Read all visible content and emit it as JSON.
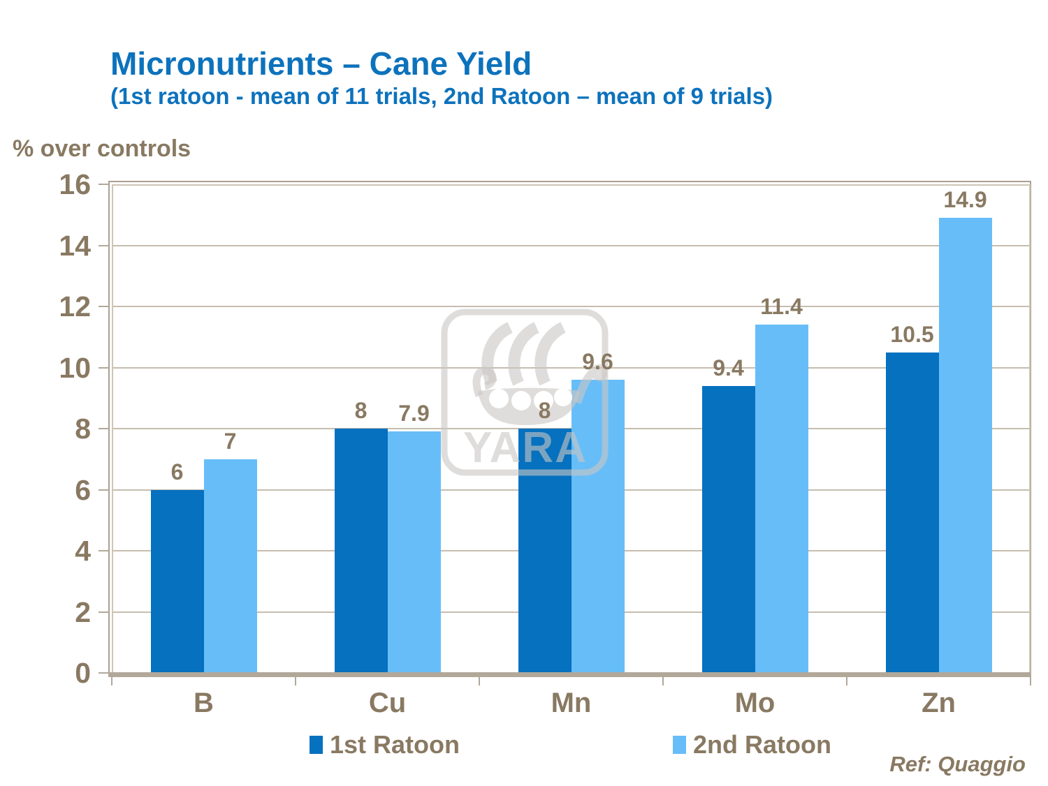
{
  "slide": {
    "title": "Micronutrients – Cane Yield",
    "subtitle": "(1st ratoon - mean of 11 trials, 2nd Ratoon – mean of 9 trials)",
    "reference": "Ref: Quaggio"
  },
  "chart_data": {
    "type": "bar",
    "title": "Micronutrients – Cane Yield",
    "subtitle": "(1st ratoon - mean of 11 trials, 2nd Ratoon – mean of 9 trials)",
    "ylabel": "% over controls",
    "xlabel": "",
    "categories": [
      "B",
      "Cu",
      "Mn",
      "Mo",
      "Zn"
    ],
    "series": [
      {
        "name": "1st Ratoon",
        "color": "#0571bf",
        "values": [
          6,
          8,
          8,
          9.4,
          10.5
        ],
        "labels": [
          "6",
          "8",
          "8",
          "9.4",
          "10.5"
        ]
      },
      {
        "name": "2nd Ratoon",
        "color": "#67bdf8",
        "values": [
          7,
          7.9,
          9.6,
          11.4,
          14.9
        ],
        "labels": [
          "7",
          "7.9",
          "9.6",
          "11.4",
          "14.9"
        ]
      }
    ],
    "ylim": [
      0,
      16
    ],
    "ytick_step": 2,
    "grid": true,
    "legend_position": "bottom"
  },
  "watermark": {
    "name": "yara-ship-logo",
    "text": "YARA"
  },
  "colors": {
    "title_blue": "#0d72bc",
    "text_brown": "#897962",
    "gridline": "#c6bdaf",
    "axis": "#b2a89a",
    "border_outer": "#aaa091",
    "border_inner": "#cec5b7",
    "background": "#ffffff",
    "watermark_gray": "rgba(201,199,195,0.6)"
  }
}
